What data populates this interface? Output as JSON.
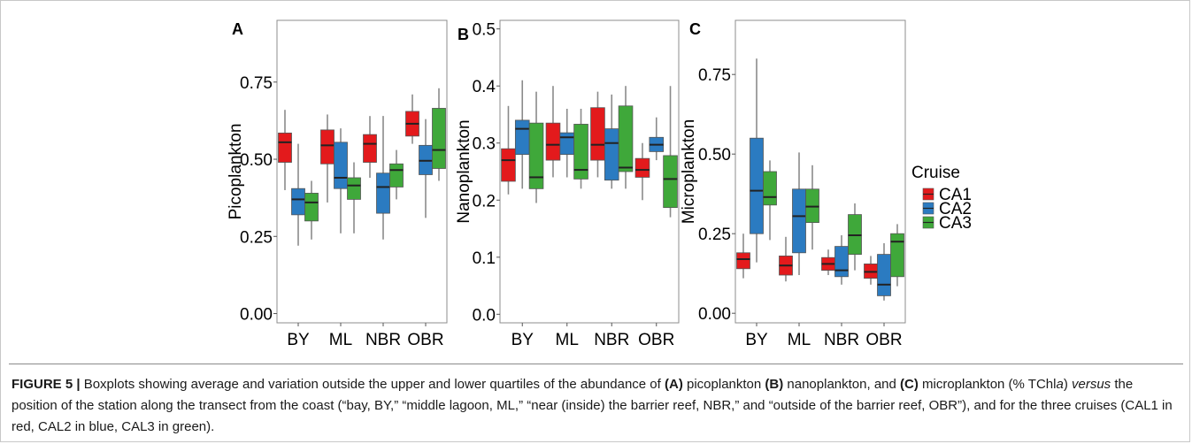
{
  "figure": {
    "caption": {
      "label": "FIGURE 5 |",
      "t1": " Boxplots showing average and variation outside the upper and lower quartiles of the abundance of ",
      "b1": "(A)",
      "t2": " picoplankton ",
      "b2": "(B)",
      "t3": " nanoplankton, and ",
      "b3": "(C)",
      "t4": " microplankton (% TChl",
      "i1": "a",
      "t5": ") ",
      "i2": "versus",
      "t6": " the position of the station along the transect from the coast (“bay, BY,” “middle lagoon, ML,” “near (inside) the barrier reef, NBR,” and “outside of the barrier reef, OBR”), and for the three cruises (CAL1 in red, CAL2 in blue, CAL3 in green)."
    },
    "legend": {
      "title": "Cruise",
      "entries": [
        {
          "label": "CA1",
          "color": "#e31a1c"
        },
        {
          "label": "CA2",
          "color": "#2b7bc1"
        },
        {
          "label": "CA3",
          "color": "#3fa83a"
        }
      ]
    }
  },
  "chart_data": [
    {
      "type": "boxplot",
      "panel": "A",
      "ylabel": "Picoplankton",
      "categories": [
        "BY",
        "ML",
        "NBR",
        "OBR"
      ],
      "ylim": [
        -0.03,
        0.95
      ],
      "yticks": [
        0.0,
        0.25,
        0.5,
        0.75
      ],
      "ytick_labels": [
        "0.00",
        "0.25",
        "0.50",
        "0.75"
      ],
      "series": [
        {
          "name": "CA1",
          "boxes": [
            [
              0.4,
              0.49,
              0.555,
              0.585,
              0.66
            ],
            [
              0.36,
              0.485,
              0.545,
              0.595,
              0.645
            ],
            [
              0.44,
              0.49,
              0.55,
              0.58,
              0.64
            ],
            [
              0.55,
              0.575,
              0.615,
              0.655,
              0.71
            ]
          ]
        },
        {
          "name": "CA2",
          "boxes": [
            [
              0.22,
              0.32,
              0.37,
              0.405,
              0.55
            ],
            [
              0.26,
              0.405,
              0.44,
              0.555,
              0.6
            ],
            [
              0.24,
              0.325,
              0.41,
              0.455,
              0.64
            ],
            [
              0.31,
              0.45,
              0.495,
              0.545,
              0.63
            ]
          ]
        },
        {
          "name": "CA3",
          "boxes": [
            [
              0.24,
              0.3,
              0.36,
              0.39,
              0.43
            ],
            [
              0.26,
              0.37,
              0.415,
              0.44,
              0.49
            ],
            [
              0.37,
              0.41,
              0.465,
              0.485,
              0.53
            ],
            [
              0.43,
              0.47,
              0.53,
              0.665,
              0.73
            ]
          ]
        }
      ]
    },
    {
      "type": "boxplot",
      "panel": "B",
      "ylabel": "Nanoplankton",
      "categories": [
        "BY",
        "ML",
        "NBR",
        "OBR"
      ],
      "ylim": [
        -0.015,
        0.515
      ],
      "yticks": [
        0.0,
        0.1,
        0.2,
        0.3,
        0.4,
        0.5
      ],
      "ytick_labels": [
        "0.0",
        "0.1",
        "0.2",
        "0.3",
        "0.4",
        "0.5"
      ],
      "series": [
        {
          "name": "CA1",
          "boxes": [
            [
              0.21,
              0.233,
              0.27,
              0.29,
              0.365
            ],
            [
              0.24,
              0.27,
              0.297,
              0.335,
              0.4
            ],
            [
              0.24,
              0.27,
              0.297,
              0.362,
              0.39
            ],
            [
              0.2,
              0.24,
              0.253,
              0.273,
              0.3
            ]
          ]
        },
        {
          "name": "CA2",
          "boxes": [
            [
              0.22,
              0.28,
              0.325,
              0.34,
              0.41
            ],
            [
              0.24,
              0.28,
              0.31,
              0.318,
              0.36
            ],
            [
              0.22,
              0.235,
              0.3,
              0.325,
              0.385
            ],
            [
              0.27,
              0.285,
              0.297,
              0.31,
              0.345
            ]
          ]
        },
        {
          "name": "CA3",
          "boxes": [
            [
              0.195,
              0.22,
              0.24,
              0.335,
              0.39
            ],
            [
              0.22,
              0.237,
              0.253,
              0.333,
              0.36
            ],
            [
              0.22,
              0.25,
              0.257,
              0.365,
              0.4
            ],
            [
              0.17,
              0.187,
              0.237,
              0.278,
              0.4
            ]
          ]
        }
      ]
    },
    {
      "type": "boxplot",
      "panel": "C",
      "ylabel": "Microplankton",
      "categories": [
        "BY",
        "ML",
        "NBR",
        "OBR"
      ],
      "ylim": [
        -0.03,
        0.92
      ],
      "yticks": [
        0.0,
        0.25,
        0.5,
        0.75
      ],
      "ytick_labels": [
        "0.00",
        "0.25",
        "0.50",
        "0.75"
      ],
      "series": [
        {
          "name": "CA1",
          "boxes": [
            [
              0.11,
              0.14,
              0.17,
              0.19,
              0.25
            ],
            [
              0.1,
              0.12,
              0.15,
              0.18,
              0.24
            ],
            [
              0.12,
              0.135,
              0.155,
              0.175,
              0.2
            ],
            [
              0.09,
              0.11,
              0.13,
              0.155,
              0.18
            ]
          ]
        },
        {
          "name": "CA2",
          "boxes": [
            [
              0.16,
              0.25,
              0.385,
              0.55,
              0.8
            ],
            [
              0.12,
              0.19,
              0.305,
              0.39,
              0.505
            ],
            [
              0.09,
              0.115,
              0.135,
              0.21,
              0.245
            ],
            [
              0.04,
              0.055,
              0.09,
              0.185,
              0.22
            ]
          ]
        },
        {
          "name": "CA3",
          "boxes": [
            [
              0.23,
              0.34,
              0.365,
              0.445,
              0.48
            ],
            [
              0.2,
              0.285,
              0.335,
              0.39,
              0.465
            ],
            [
              0.135,
              0.185,
              0.245,
              0.31,
              0.345
            ],
            [
              0.085,
              0.115,
              0.225,
              0.25,
              0.28
            ]
          ]
        }
      ]
    }
  ]
}
